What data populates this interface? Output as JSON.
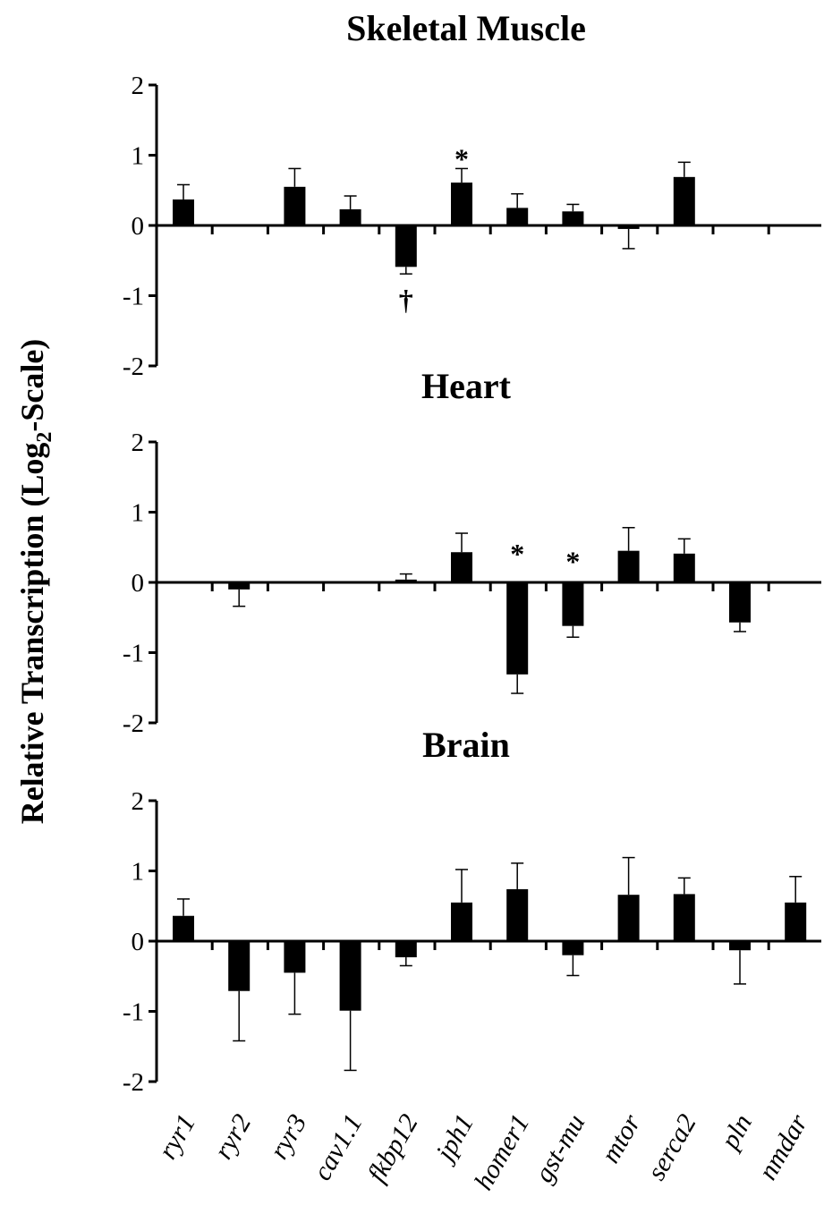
{
  "ylabel": {
    "prefix": "Relative Transcription (Log",
    "sub": "2",
    "suffix": "-Scale)"
  },
  "chart_data": [
    {
      "type": "bar",
      "title": "Skeletal Muscle",
      "ylim": [
        -2,
        2
      ],
      "yticks": [
        "2",
        "1",
        "0",
        "-1",
        "-2"
      ],
      "categories": [
        "ryr1",
        "ryr2",
        "ryr3",
        "cav1.1",
        "fkbp12",
        "jph1",
        "homer1",
        "gst-mu",
        "mtor",
        "serca2",
        "pln",
        "nmdar"
      ],
      "values": [
        0.37,
        null,
        0.55,
        0.23,
        -0.59,
        0.61,
        0.25,
        0.2,
        -0.05,
        0.69,
        null,
        null
      ],
      "errors": [
        0.21,
        null,
        0.26,
        0.19,
        0.1,
        0.2,
        0.2,
        0.1,
        0.28,
        0.21,
        null,
        null
      ],
      "markers": [
        {
          "category": "jph1",
          "symbol": "*",
          "side": "above"
        },
        {
          "category": "fkbp12",
          "symbol": "†",
          "side": "below"
        }
      ]
    },
    {
      "type": "bar",
      "title": "Heart",
      "ylim": [
        -2,
        2
      ],
      "yticks": [
        "2",
        "1",
        "0",
        "-1",
        "-2"
      ],
      "categories": [
        "ryr1",
        "ryr2",
        "ryr3",
        "cav1.1",
        "fkbp12",
        "jph1",
        "homer1",
        "gst-mu",
        "mtor",
        "serca2",
        "pln",
        "nmdar"
      ],
      "values": [
        null,
        -0.1,
        null,
        null,
        0.04,
        0.43,
        -1.31,
        -0.62,
        0.45,
        0.41,
        -0.57,
        null
      ],
      "errors": [
        null,
        0.24,
        null,
        null,
        0.08,
        0.27,
        0.27,
        0.16,
        0.33,
        0.21,
        0.13,
        null
      ],
      "markers": [
        {
          "category": "homer1",
          "symbol": "*",
          "side": "above"
        },
        {
          "category": "gst-mu",
          "symbol": "*",
          "side": "above"
        }
      ]
    },
    {
      "type": "bar",
      "title": "Brain",
      "ylim": [
        -2,
        2
      ],
      "yticks": [
        "2",
        "1",
        "0",
        "-1",
        "-2"
      ],
      "categories": [
        "ryr1",
        "ryr2",
        "ryr3",
        "cav1.1",
        "fkbp12",
        "jph1",
        "homer1",
        "gst-mu",
        "mtor",
        "serca2",
        "pln",
        "nmdar"
      ],
      "values": [
        0.36,
        -0.71,
        -0.45,
        -0.99,
        -0.23,
        0.55,
        0.74,
        -0.2,
        0.66,
        0.67,
        -0.13,
        0.55
      ],
      "errors": [
        0.24,
        0.71,
        0.59,
        0.85,
        0.12,
        0.47,
        0.37,
        0.29,
        0.53,
        0.23,
        0.48,
        0.37
      ],
      "markers": []
    }
  ]
}
